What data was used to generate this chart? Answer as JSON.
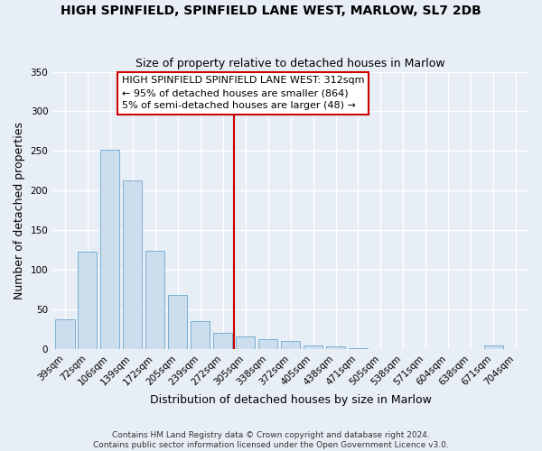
{
  "title": "HIGH SPINFIELD, SPINFIELD LANE WEST, MARLOW, SL7 2DB",
  "subtitle": "Size of property relative to detached houses in Marlow",
  "xlabel": "Distribution of detached houses by size in Marlow",
  "ylabel": "Number of detached properties",
  "bar_color": "#ccdded",
  "bar_edge_color": "#7bafd4",
  "categories": [
    "39sqm",
    "72sqm",
    "106sqm",
    "139sqm",
    "172sqm",
    "205sqm",
    "239sqm",
    "272sqm",
    "305sqm",
    "338sqm",
    "372sqm",
    "405sqm",
    "438sqm",
    "471sqm",
    "505sqm",
    "538sqm",
    "571sqm",
    "604sqm",
    "638sqm",
    "671sqm",
    "704sqm"
  ],
  "values": [
    38,
    123,
    252,
    213,
    124,
    68,
    35,
    20,
    16,
    13,
    10,
    5,
    3,
    1,
    0,
    0,
    0,
    0,
    0,
    4,
    0
  ],
  "ylim": [
    0,
    350
  ],
  "yticks": [
    0,
    50,
    100,
    150,
    200,
    250,
    300,
    350
  ],
  "redline_index": 8,
  "annotation_line1": "HIGH SPINFIELD SPINFIELD LANE WEST: 312sqm",
  "annotation_line2": "← 95% of detached houses are smaller (864)",
  "annotation_line3": "5% of semi-detached houses are larger (48) →",
  "footer1": "Contains HM Land Registry data © Crown copyright and database right 2024.",
  "footer2": "Contains public sector information licensed under the Open Government Licence v3.0.",
  "background_color": "#e8eef5",
  "plot_background_color": "#e8eef5",
  "grid_color": "#ffffff",
  "annotation_box_facecolor": "#ffffff",
  "annotation_box_edgecolor": "#cc0000",
  "redline_color": "#cc0000",
  "title_fontsize": 10,
  "subtitle_fontsize": 9,
  "axis_label_fontsize": 9,
  "tick_fontsize": 7.5,
  "annotation_fontsize": 8,
  "footer_fontsize": 6.5
}
